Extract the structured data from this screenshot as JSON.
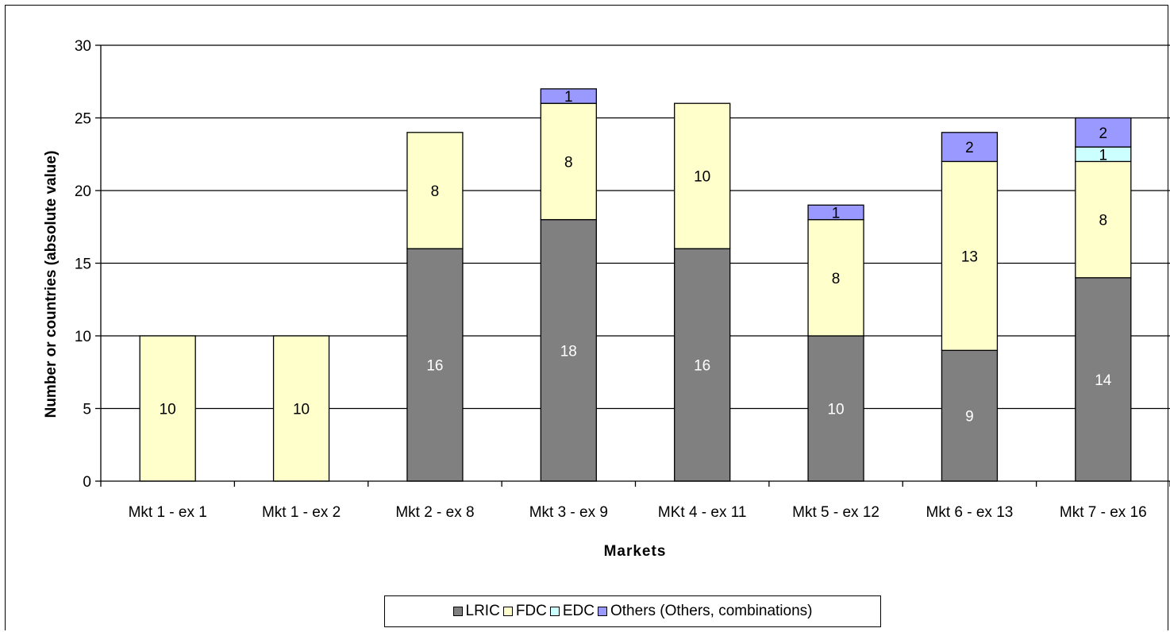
{
  "chart_data": {
    "type": "bar",
    "stacked": true,
    "title": "",
    "xlabel": "Markets",
    "ylabel": "Number or countries (absolute value)",
    "ylim": [
      0,
      30
    ],
    "yticks": [
      0,
      5,
      10,
      15,
      20,
      25,
      30
    ],
    "grid": true,
    "legend_position": "bottom",
    "categories": [
      "Mkt 1 - ex 1",
      "Mkt 1 - ex 2",
      "Mkt 2 - ex 8",
      "Mkt 3 - ex 9",
      "MKt 4 - ex 11",
      "Mkt 5 - ex 12",
      "Mkt 6 - ex 13",
      "Mkt 7 - ex 16"
    ],
    "series": [
      {
        "name": "LRIC",
        "color": "#808080",
        "label_color": "#ffffff",
        "values": [
          0,
          0,
          16,
          18,
          16,
          10,
          9,
          14
        ]
      },
      {
        "name": "FDC",
        "color": "#ffffcc",
        "label_color": "#000000",
        "values": [
          10,
          10,
          8,
          8,
          10,
          8,
          13,
          8
        ]
      },
      {
        "name": "EDC",
        "color": "#ccffff",
        "label_color": "#000000",
        "values": [
          0,
          0,
          0,
          0,
          0,
          0,
          0,
          1
        ]
      },
      {
        "name": "Others (Others, combinations)",
        "color": "#9999ff",
        "label_color": "#000000",
        "values": [
          0,
          0,
          0,
          1,
          0,
          1,
          2,
          2
        ]
      }
    ]
  }
}
